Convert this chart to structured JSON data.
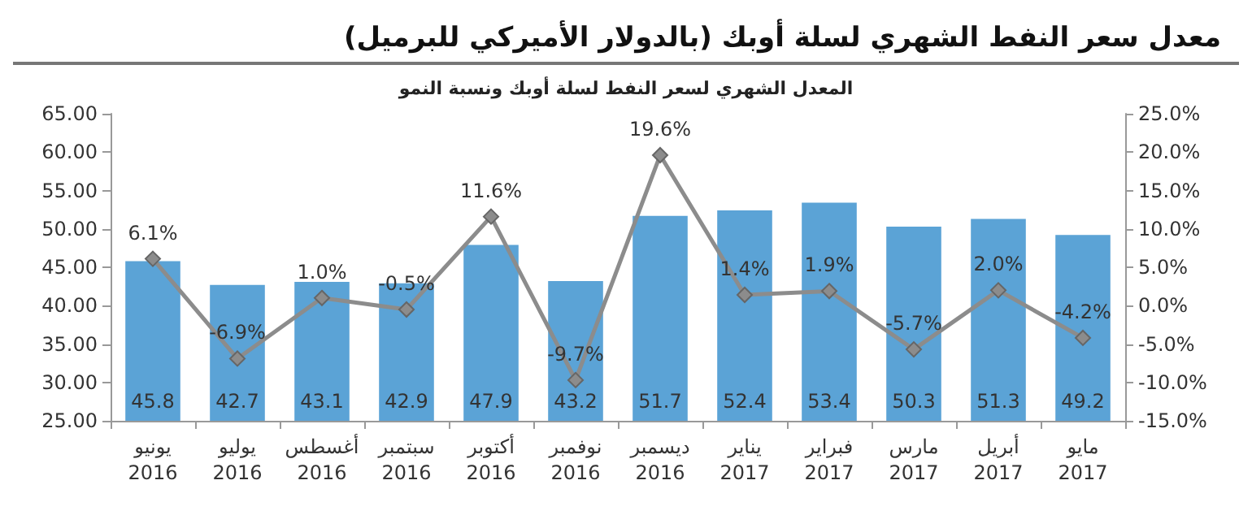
{
  "chart_data": {
    "type": "bar",
    "title": "معدل سعر النفط الشهري لسلة أوبك (بالدولار الأميركي للبرميل)",
    "subtitle": "المعدل الشهري لسعر النفط لسلة أوبك ونسبة النمو",
    "categories": [
      "يونيو\n2016",
      "يوليو\n2016",
      "أغسطس\n2016",
      "سبتمبر\n2016",
      "أكتوبر\n2016",
      "نوفمبر\n2016",
      "ديسمبر\n2016",
      "يناير\n2017",
      "فبراير\n2017",
      "مارس\n2017",
      "أبريل\n2017",
      "مايو\n2017"
    ],
    "series": [
      {
        "color": "#5ba3d6",
        "values": [
          45.8,
          42.7,
          43.1,
          42.9,
          47.9,
          43.2,
          51.7,
          52.4,
          53.4,
          50.3,
          51.3,
          49.2
        ],
        "data_labels": true
      },
      {
        "type": "line",
        "axis": "y2",
        "color": "#8c8c8c",
        "marker": "diamond",
        "values": [
          6.1,
          -6.9,
          1.0,
          -0.5,
          11.6,
          -9.7,
          19.6,
          1.4,
          1.9,
          -5.7,
          2.0,
          -4.2
        ],
        "value_labels": [
          "6.1%",
          "-6.9%",
          "1.0%",
          "-0.5%",
          "11.6%",
          "-9.7%",
          "19.6%",
          "1.4%",
          "1.9%",
          "-5.7%",
          "2.0%",
          "-4.2%"
        ]
      }
    ],
    "ylim": [
      25,
      65
    ],
    "yticks": [
      {
        "value": 25,
        "label": "25.00"
      },
      {
        "value": 30,
        "label": "30.00"
      },
      {
        "value": 35,
        "label": "35.00"
      },
      {
        "value": 40,
        "label": "40.00"
      },
      {
        "value": 45,
        "label": "45.00"
      },
      {
        "value": 50,
        "label": "50.00"
      },
      {
        "value": 55,
        "label": "55.00"
      },
      {
        "value": 60,
        "label": "60.00"
      },
      {
        "value": 65,
        "label": "65.00"
      }
    ],
    "y2lim": [
      -15,
      25
    ],
    "y2ticks": [
      {
        "value": -15,
        "label": "-15.0%"
      },
      {
        "value": -10,
        "label": "-10.0%"
      },
      {
        "value": -5,
        "label": "-5.0%"
      },
      {
        "value": 0,
        "label": "0.0%"
      },
      {
        "value": 5,
        "label": "5.0%"
      },
      {
        "value": 10,
        "label": "10.0%"
      },
      {
        "value": 15,
        "label": "15.0%"
      },
      {
        "value": 20,
        "label": "20.0%"
      },
      {
        "value": 25,
        "label": "25.0%"
      }
    ],
    "grid": false
  }
}
